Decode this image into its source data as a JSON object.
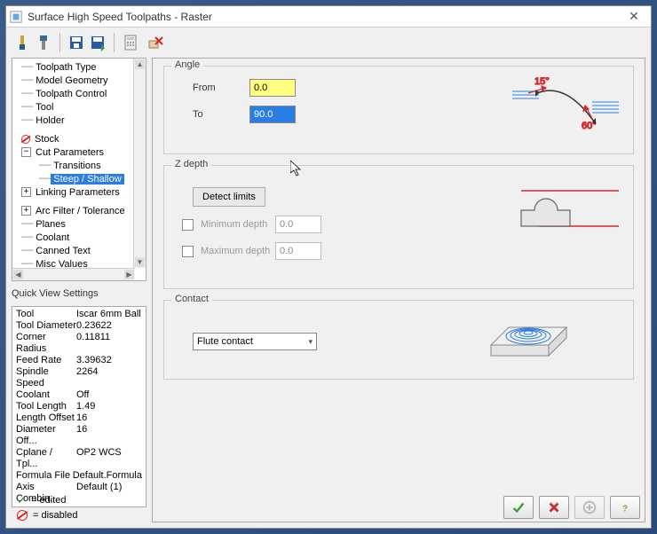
{
  "window": {
    "title": "Surface High Speed Toolpaths - Raster"
  },
  "tree": {
    "items": [
      {
        "label": "Toolpath Type",
        "indent": 1,
        "prefix": "dash"
      },
      {
        "label": "Model Geometry",
        "indent": 1,
        "prefix": "dash"
      },
      {
        "label": "Toolpath Control",
        "indent": 1,
        "prefix": "dash"
      },
      {
        "label": "Tool",
        "indent": 1,
        "prefix": "dash"
      },
      {
        "label": "Holder",
        "indent": 1,
        "prefix": "dash"
      },
      {
        "label": "",
        "spacer": true
      },
      {
        "label": "Stock",
        "indent": 1,
        "prefix": "disabled"
      },
      {
        "label": "Cut Parameters",
        "indent": 1,
        "prefix": "minus"
      },
      {
        "label": "Transitions",
        "indent": 2,
        "prefix": "dash"
      },
      {
        "label": "Steep / Shallow",
        "indent": 2,
        "prefix": "dash",
        "selected": true
      },
      {
        "label": "Linking Parameters",
        "indent": 1,
        "prefix": "plus"
      },
      {
        "label": "",
        "spacer": true
      },
      {
        "label": "Arc Filter / Tolerance",
        "indent": 1,
        "prefix": "plus"
      },
      {
        "label": "Planes",
        "indent": 1,
        "prefix": "dash"
      },
      {
        "label": "Coolant",
        "indent": 1,
        "prefix": "dash"
      },
      {
        "label": "Canned Text",
        "indent": 1,
        "prefix": "dash"
      },
      {
        "label": "Misc Values",
        "indent": 1,
        "prefix": "dash"
      }
    ]
  },
  "quick_view": {
    "header": "Quick View Settings",
    "rows": [
      {
        "k": "Tool",
        "v": "Iscar 6mm Ball"
      },
      {
        "k": "Tool Diameter",
        "v": "0.23622"
      },
      {
        "k": "Corner Radius",
        "v": "0.11811"
      },
      {
        "k": "Feed Rate",
        "v": "3.39632"
      },
      {
        "k": "Spindle Speed",
        "v": "2264"
      },
      {
        "k": "Coolant",
        "v": "Off"
      },
      {
        "k": "Tool Length",
        "v": "1.49"
      },
      {
        "k": "Length Offset",
        "v": "16"
      },
      {
        "k": "Diameter Off...",
        "v": "16"
      },
      {
        "k": "Cplane / Tpl...",
        "v": "OP2 WCS"
      },
      {
        "k": "Formula File",
        "v": "Default.Formula"
      },
      {
        "k": "Axis Combin...",
        "v": "Default (1)"
      }
    ]
  },
  "angle_group": {
    "title": "Angle",
    "from_label": "From",
    "from_value": "0.0",
    "to_label": "To",
    "to_value": "90.0",
    "diagram": {
      "angle1": "15°",
      "angle2": "60°"
    }
  },
  "zdepth_group": {
    "title": "Z depth",
    "detect_label": "Detect limits",
    "min_label": "Minimum depth",
    "min_value": "0.0",
    "max_label": "Maximum depth",
    "max_value": "0.0"
  },
  "contact_group": {
    "title": "Contact",
    "dropdown_value": "Flute contact"
  },
  "legend": {
    "edited": "= edited",
    "disabled": "= disabled"
  },
  "colors": {
    "accent": "#2a7de2",
    "yellow": "#ffff80",
    "red": "#d62728",
    "green": "#2e9e2e"
  }
}
